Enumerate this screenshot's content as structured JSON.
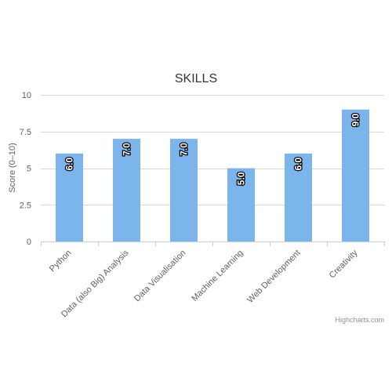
{
  "chart_data": {
    "type": "bar",
    "title": "SKILLS",
    "ylabel": "Score (0–10)",
    "xlabel": "",
    "categories": [
      "Python",
      "Data (also Big) Analysis",
      "Data Visualisation",
      "Machine Learning",
      "Web Development",
      "Creativity"
    ],
    "values": [
      6,
      7,
      7,
      5,
      6,
      9
    ],
    "data_labels": [
      "6.0",
      "7.0",
      "7.0",
      "5.0",
      "6.0",
      "9.0"
    ],
    "ylim": [
      0,
      10
    ],
    "yticks": [
      0,
      2.5,
      5,
      7.5,
      10
    ],
    "ytick_labels": [
      "0",
      "2.5",
      "5",
      "7.5",
      "10"
    ],
    "grid": true,
    "legend": false,
    "bar_color": "#7cb5ec",
    "credit": "Highcharts.com"
  }
}
